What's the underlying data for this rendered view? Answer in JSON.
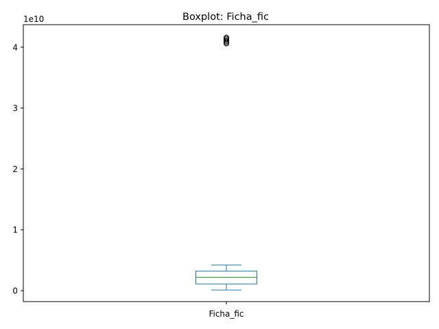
{
  "chart_data": {
    "type": "boxplot",
    "title": "Boxplot: Ficha_fic",
    "xlabel": "",
    "ylabel": "",
    "categories": [
      "Ficha_fic"
    ],
    "y_scale_label": "1e10",
    "y_scale_factor": 10000000000,
    "ylim": [
      -0.18,
      4.37
    ],
    "yticks": [
      0,
      1,
      2,
      3,
      4
    ],
    "grid": false,
    "boxes": [
      {
        "name": "Ficha_fic",
        "whisker_low": 0.01,
        "q1": 0.11,
        "median": 0.22,
        "q3": 0.32,
        "whisker_high": 0.42,
        "fliers": [
          4.06,
          4.08,
          4.1,
          4.12,
          4.14,
          4.16
        ]
      }
    ],
    "colors": {
      "box": "#1f77b4",
      "median": "#2ca02c",
      "axes": "#000000"
    }
  }
}
